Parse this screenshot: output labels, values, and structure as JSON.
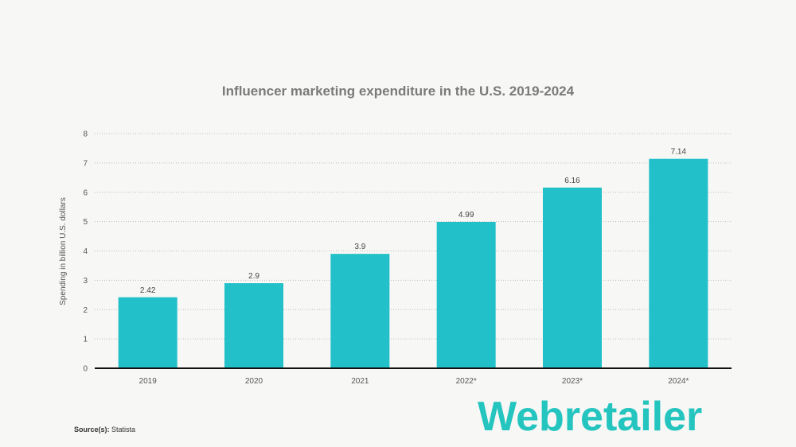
{
  "chart_data": {
    "type": "bar",
    "title": "Influencer marketing expenditure in the U.S. 2019-2024",
    "categories": [
      "2019",
      "2020",
      "2021",
      "2022*",
      "2023*",
      "2024*"
    ],
    "values": [
      2.42,
      2.9,
      3.9,
      4.99,
      6.16,
      7.14
    ],
    "value_labels": [
      "2.42",
      "2.9",
      "3.9",
      "4.99",
      "6.16",
      "7.14"
    ],
    "xlabel": "",
    "ylabel": "Spending in billion U.S. dollars",
    "ylim": [
      0,
      8
    ],
    "yticks": [
      "0",
      "1",
      "2",
      "3",
      "4",
      "5",
      "6",
      "7",
      "8"
    ],
    "grid": true,
    "bar_color": "#22c0c9"
  },
  "source": {
    "label": "Source(s):",
    "value": "Statista"
  },
  "logo": {
    "text": "Webretailer",
    "color": "#24c4bf"
  }
}
